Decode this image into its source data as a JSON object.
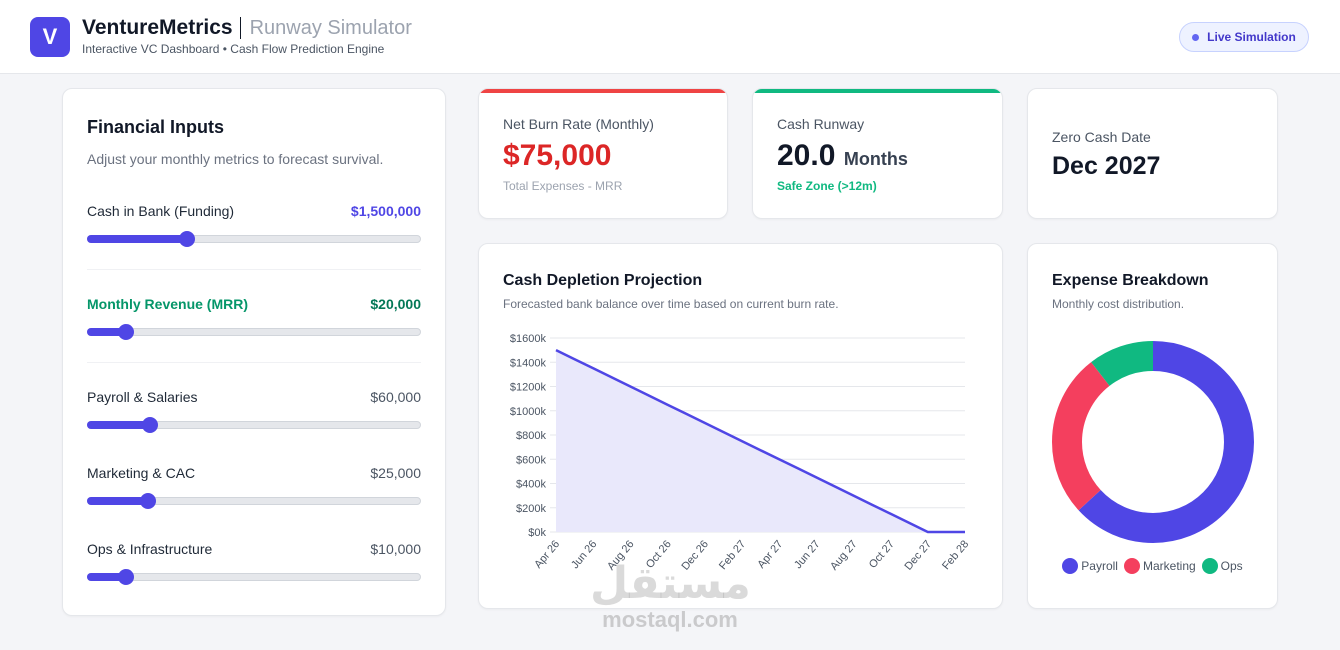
{
  "header": {
    "logo_letter": "V",
    "brand": "VentureMetrics",
    "product": "Runway Simulator",
    "tagline": "Interactive VC Dashboard • Cash Flow Prediction Engine",
    "live_label": "Live Simulation"
  },
  "inputs": {
    "title": "Financial Inputs",
    "description": "Adjust your monthly metrics to forecast survival.",
    "fields": [
      {
        "label": "Cash in Bank (Funding)",
        "value": "$1,500,000",
        "fraction": 0.295
      },
      {
        "label": "Monthly Revenue (MRR)",
        "value": "$20,000",
        "fraction": 0.115
      },
      {
        "label": "Payroll & Salaries",
        "value": "$60,000",
        "fraction": 0.185
      },
      {
        "label": "Marketing & CAC",
        "value": "$25,000",
        "fraction": 0.18
      },
      {
        "label": "Ops & Infrastructure",
        "value": "$10,000",
        "fraction": 0.115
      }
    ]
  },
  "stats": {
    "burn": {
      "label": "Net Burn Rate (Monthly)",
      "value": "$75,000",
      "note": "Total Expenses - MRR"
    },
    "runway": {
      "label": "Cash Runway",
      "value": "20.0",
      "unit": "Months",
      "note": "Safe Zone (>12m)"
    },
    "zero": {
      "label": "Zero Cash Date",
      "value": "Dec 2027"
    }
  },
  "projection": {
    "title": "Cash Depletion Projection",
    "subtitle": "Forecasted bank balance over time based on current burn rate."
  },
  "breakdown": {
    "title": "Expense Breakdown",
    "subtitle": "Monthly cost distribution."
  },
  "chart_data": [
    {
      "type": "area",
      "x": [
        "Apr 26",
        "May 26",
        "Jun 26",
        "Jul 26",
        "Aug 26",
        "Sep 26",
        "Oct 26",
        "Nov 26",
        "Dec 26",
        "Jan 27",
        "Feb 27",
        "Mar 27",
        "Apr 27",
        "May 27",
        "Jun 27",
        "Jul 27",
        "Aug 27",
        "Sep 27",
        "Oct 27",
        "Nov 27",
        "Dec 27",
        "Jan 28",
        "Feb 28"
      ],
      "x_tick_labels": [
        "Apr 26",
        "Jun 26",
        "Aug 26",
        "Oct 26",
        "Dec 26",
        "Feb 27",
        "Apr 27",
        "Jun 27",
        "Aug 27",
        "Oct 27",
        "Dec 27",
        "Feb 28"
      ],
      "series": [
        {
          "values": [
            1500,
            1425,
            1350,
            1275,
            1200,
            1125,
            1050,
            975,
            900,
            825,
            750,
            675,
            600,
            525,
            450,
            375,
            300,
            225,
            150,
            75,
            0,
            0,
            0
          ]
        }
      ],
      "y_tick_labels": [
        "$0k",
        "$200k",
        "$400k",
        "$600k",
        "$800k",
        "$1000k",
        "$1200k",
        "$1400k",
        "$1600k"
      ],
      "ylim": [
        0,
        1600
      ],
      "grid": true,
      "colors": {
        "line": "#4f46e5",
        "fill": "#e9e8fb"
      }
    },
    {
      "type": "pie",
      "donut": true,
      "categories": [
        "Payroll",
        "Marketing",
        "Ops"
      ],
      "values": [
        60000,
        25000,
        10000
      ],
      "colors": [
        "#4f46e5",
        "#f43f5e",
        "#10b981"
      ],
      "legend": "bottom"
    }
  ],
  "watermark": {
    "arabic": "مستقل",
    "latin": "mostaql.com"
  },
  "colors": {
    "accent": "#4f46e5",
    "danger": "#dc2626",
    "success": "#059669",
    "burn_bar": "#ef4444",
    "runway_bar": "#10b981"
  }
}
